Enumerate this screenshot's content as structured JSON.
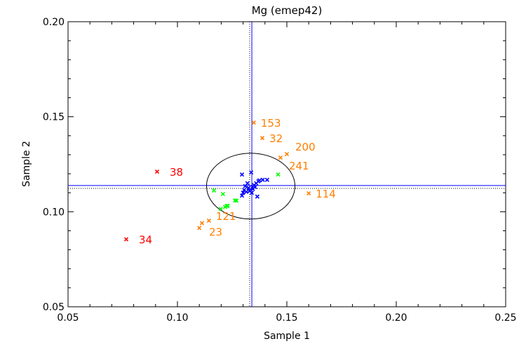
{
  "chart_data": {
    "type": "scatter",
    "title": "Mg (emep42)",
    "xlabel": "Sample 1",
    "ylabel": "Sample 2",
    "xlim": [
      0.05,
      0.25
    ],
    "ylim": [
      0.05,
      0.2
    ],
    "xticks": [
      "0.05",
      "0.10",
      "0.15",
      "0.20",
      "0.25"
    ],
    "yticks": [
      "0.05",
      "0.10",
      "0.15",
      "0.20"
    ],
    "xtick_values": [
      0.05,
      0.1,
      0.15,
      0.2,
      0.25
    ],
    "ytick_values": [
      0.05,
      0.1,
      0.15,
      0.2
    ],
    "median_x": 0.134,
    "median_y": 0.1138,
    "assigned_x": 0.133,
    "assigned_y": 0.1123,
    "ellipse": {
      "cx": 0.1335,
      "cy": 0.1135,
      "rx": 0.0202,
      "ry": 0.0173
    },
    "colors": {
      "red": "#ff0000",
      "orange": "#ff7f00",
      "green": "#00ff00",
      "blue": "#0000ff",
      "line": "#0000ff"
    },
    "series": [
      {
        "name": "red",
        "color": "#ff0000",
        "points": [
          {
            "x": 0.0907,
            "y": 0.1211,
            "label": "38"
          },
          {
            "x": 0.0766,
            "y": 0.0855,
            "label": "34"
          }
        ]
      },
      {
        "name": "orange",
        "color": "#ff7f00",
        "points": [
          {
            "x": 0.1349,
            "y": 0.1469,
            "label": "153"
          },
          {
            "x": 0.1388,
            "y": 0.1388,
            "label": "32"
          },
          {
            "x": 0.15,
            "y": 0.1303,
            "label": "200"
          },
          {
            "x": 0.1471,
            "y": 0.1285,
            "label": "241"
          },
          {
            "x": 0.16,
            "y": 0.1097,
            "label": "114"
          },
          {
            "x": 0.1144,
            "y": 0.0953,
            "label": "121"
          },
          {
            "x": 0.1112,
            "y": 0.094,
            "label": "23"
          },
          {
            "x": 0.11,
            "y": 0.0915,
            "label": ""
          }
        ]
      },
      {
        "name": "green",
        "color": "#00ff00",
        "points": [
          {
            "x": 0.146,
            "y": 0.1196
          },
          {
            "x": 0.1167,
            "y": 0.1112
          },
          {
            "x": 0.1208,
            "y": 0.1093
          },
          {
            "x": 0.1263,
            "y": 0.106
          },
          {
            "x": 0.127,
            "y": 0.1058
          },
          {
            "x": 0.1225,
            "y": 0.103
          },
          {
            "x": 0.1218,
            "y": 0.1025
          },
          {
            "x": 0.123,
            "y": 0.1032
          },
          {
            "x": 0.1198,
            "y": 0.1015
          }
        ]
      },
      {
        "name": "blue",
        "color": "#0000ff",
        "points": [
          {
            "x": 0.1295,
            "y": 0.1196
          },
          {
            "x": 0.1337,
            "y": 0.1207
          },
          {
            "x": 0.1343,
            "y": 0.113
          },
          {
            "x": 0.132,
            "y": 0.115
          },
          {
            "x": 0.131,
            "y": 0.1135
          },
          {
            "x": 0.1305,
            "y": 0.1115
          },
          {
            "x": 0.13,
            "y": 0.11
          },
          {
            "x": 0.1295,
            "y": 0.1085
          },
          {
            "x": 0.133,
            "y": 0.111
          },
          {
            "x": 0.135,
            "y": 0.114
          },
          {
            "x": 0.136,
            "y": 0.115
          },
          {
            "x": 0.137,
            "y": 0.116
          },
          {
            "x": 0.1375,
            "y": 0.1165
          },
          {
            "x": 0.139,
            "y": 0.1168
          },
          {
            "x": 0.141,
            "y": 0.1168
          },
          {
            "x": 0.1345,
            "y": 0.112
          },
          {
            "x": 0.1365,
            "y": 0.108
          },
          {
            "x": 0.1325,
            "y": 0.1125
          },
          {
            "x": 0.1355,
            "y": 0.113
          },
          {
            "x": 0.1315,
            "y": 0.1105
          },
          {
            "x": 0.134,
            "y": 0.11
          }
        ]
      }
    ]
  }
}
